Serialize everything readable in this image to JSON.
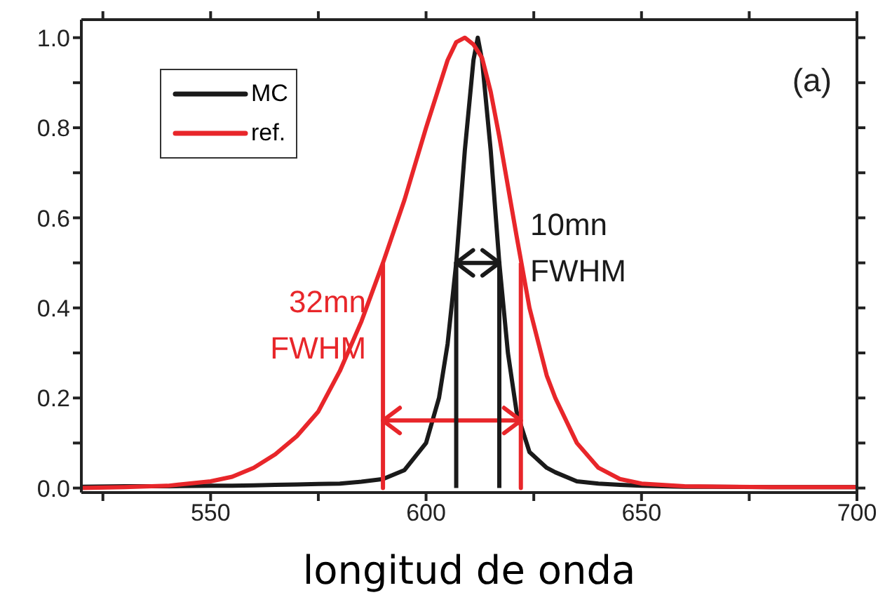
{
  "chart_data": {
    "type": "line",
    "xlabel": "longitud de onda",
    "annotations": [
      "(a)"
    ],
    "x": [
      520,
      530,
      540,
      550,
      555,
      560,
      565,
      570,
      575,
      580,
      585,
      590,
      595,
      600,
      603,
      605,
      607,
      609,
      611,
      612,
      613,
      615,
      617,
      619,
      621,
      624,
      628,
      630,
      635,
      640,
      645,
      650,
      660,
      680,
      700
    ],
    "series": [
      {
        "name": "MC",
        "color": "#1a1a1a",
        "values": [
          0.003,
          0.004,
          0.004,
          0.005,
          0.005,
          0.006,
          0.007,
          0.008,
          0.009,
          0.01,
          0.014,
          0.02,
          0.04,
          0.1,
          0.2,
          0.32,
          0.5,
          0.75,
          0.95,
          1.0,
          0.95,
          0.75,
          0.5,
          0.3,
          0.17,
          0.08,
          0.045,
          0.035,
          0.015,
          0.01,
          0.007,
          0.005,
          0.003,
          0.002,
          0.002
        ]
      },
      {
        "name": "ref.",
        "color": "#e8262a",
        "values": [
          0.0,
          0.002,
          0.005,
          0.015,
          0.025,
          0.045,
          0.075,
          0.115,
          0.17,
          0.26,
          0.37,
          0.5,
          0.64,
          0.8,
          0.89,
          0.95,
          0.99,
          1.0,
          0.985,
          0.97,
          0.955,
          0.88,
          0.78,
          0.67,
          0.56,
          0.4,
          0.25,
          0.2,
          0.1,
          0.045,
          0.02,
          0.01,
          0.004,
          0.002,
          0.002
        ]
      },
      {
        "name": "32mn\nFWHM",
        "color": "#e8262a",
        "x": [
          590,
          590,
          590,
          622,
          622,
          622
        ],
        "values": [
          0.5,
          0,
          0.15,
          0.15,
          0,
          0.5
        ]
      },
      {
        "name": "10mn\nFWHM",
        "color": "#1a1a1a",
        "x": [
          607,
          607,
          617,
          617
        ],
        "values": [
          0,
          0.5,
          0.5,
          0
        ]
      }
    ],
    "xlim": [
      520,
      700
    ],
    "xticks": [
      {
        "value": 525,
        "label": null
      },
      550,
      {
        "value": 575,
        "label": null
      },
      600,
      {
        "value": 625,
        "label": null
      },
      650,
      {
        "value": 675,
        "label": null
      },
      700
    ],
    "ylim": [
      -0.01,
      1.04
    ],
    "yticks": [
      {
        "value": 0,
        "label": "0.0"
      },
      {
        "value": 0.1,
        "label": null
      },
      0.2,
      {
        "value": 0.3,
        "label": null
      },
      0.4,
      {
        "value": 0.5,
        "label": null
      },
      0.6,
      {
        "value": 0.7,
        "label": null
      },
      0.8,
      {
        "value": 0.9,
        "label": null
      },
      {
        "value": 1,
        "label": "1.0"
      }
    ],
    "legend": "top left",
    "marker": "none",
    "line_style": "solid"
  }
}
